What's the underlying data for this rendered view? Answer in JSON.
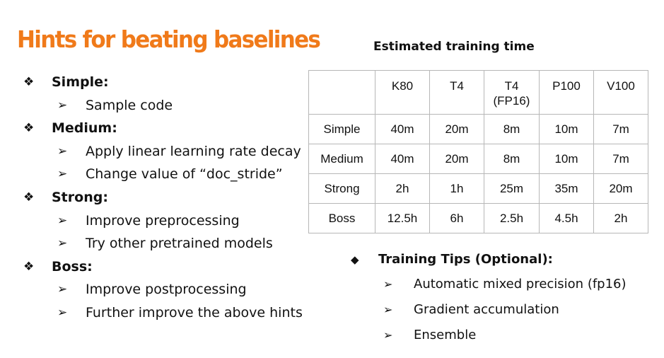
{
  "title": "Hints for beating baselines",
  "hints": [
    {
      "level": "Simple:",
      "items": [
        "Sample code"
      ]
    },
    {
      "level": "Medium:",
      "items": [
        "Apply linear learning rate decay",
        "Change value of “doc_stride”"
      ]
    },
    {
      "level": "Strong:",
      "items": [
        "Improve preprocessing",
        "Try other pretrained models"
      ]
    },
    {
      "level": "Boss:",
      "items": [
        "Improve postprocessing",
        "Further improve the above hints"
      ]
    }
  ],
  "glyphs": {
    "diamond4": "❖",
    "arrow": "➢",
    "diamond": "◆"
  },
  "table": {
    "caption": "Estimated training time",
    "headers": [
      "",
      "K80",
      "T4",
      "T4\n(FP16)",
      "P100",
      "V100"
    ],
    "rows": [
      [
        "Simple",
        "40m",
        "20m",
        "8m",
        "10m",
        "7m"
      ],
      [
        "Medium",
        "40m",
        "20m",
        "8m",
        "10m",
        "7m"
      ],
      [
        "Strong",
        "2h",
        "1h",
        "25m",
        "35m",
        "20m"
      ],
      [
        "Boss",
        "12.5h",
        "6h",
        "2.5h",
        "4.5h",
        "2h"
      ]
    ]
  },
  "tips": {
    "heading": "Training Tips (Optional):",
    "items": [
      "Automatic mixed precision (fp16)",
      "Gradient accumulation",
      "Ensemble"
    ]
  }
}
